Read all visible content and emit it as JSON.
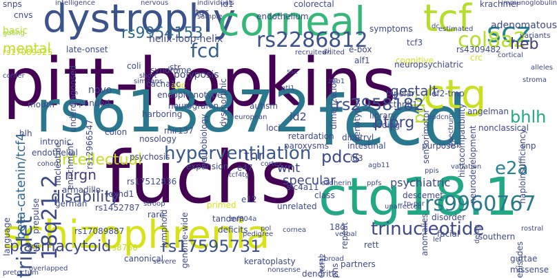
{
  "words": [
    {
      "text": "pitt-hopkins",
      "color": "#440154"
    },
    {
      "text": "fecd",
      "color": "#2a788e"
    },
    {
      "text": "fuchs",
      "color": "#440154"
    },
    {
      "text": "rs613872",
      "color": "#2a788e"
    },
    {
      "text": "ctg18.1",
      "color": "#22a884"
    },
    {
      "text": "schizophrenia",
      "color": "#d8e219"
    },
    {
      "text": "dystrophy",
      "color": "#3b528b"
    },
    {
      "text": "corneal",
      "color": "#35b779"
    },
    {
      "text": "tcf",
      "color": "#b5de2b"
    },
    {
      "text": "ctg",
      "color": "#c8e020"
    },
    {
      "text": "18q21.2",
      "color": "#3e4989"
    },
    {
      "text": "triplet",
      "color": "#3b528b"
    },
    {
      "text": "scz",
      "color": "#26828e"
    },
    {
      "text": "rs9954153",
      "color": "#31688e"
    },
    {
      "text": "fcd",
      "color": "#355f8d"
    },
    {
      "text": "rs2286812",
      "color": "#3b528b"
    },
    {
      "text": "col8a2",
      "color": "#b5de2b"
    },
    {
      "text": "pdc",
      "color": "#b5de2b"
    },
    {
      "text": "heb",
      "color": "#443983"
    },
    {
      "text": "mental",
      "color": "#bddf26"
    },
    {
      "text": "hyperventilation",
      "color": "#38588c"
    },
    {
      "text": "rs2958182",
      "color": "#3b528b"
    },
    {
      "text": "gestalt",
      "color": "#3e4989"
    },
    {
      "text": "bhlh",
      "color": "#22a884"
    },
    {
      "text": "ptprg",
      "color": "#3e4989"
    },
    {
      "text": "intellectual",
      "color": "#c2df23"
    },
    {
      "text": "beta-catenin/tcf4",
      "color": "#31688e"
    },
    {
      "text": "rs9960767",
      "color": "#2a788e"
    },
    {
      "text": "trinucleotide",
      "color": "#3e4989"
    },
    {
      "text": "rs17595731",
      "color": "#3b528b"
    },
    {
      "text": "plasmacytoid",
      "color": "#3e4989"
    },
    {
      "text": "e2a",
      "color": "#26828e"
    },
    {
      "text": "pdcs",
      "color": "#3e4989"
    },
    {
      "text": "wnt",
      "color": "#3e4989"
    },
    {
      "text": "nrgn",
      "color": "#443983"
    },
    {
      "text": "disability",
      "color": "#3e4989"
    },
    {
      "text": "specular",
      "color": "#3e4989"
    },
    {
      "text": "psychiatric",
      "color": "#3e4989"
    },
    {
      "text": "tnr",
      "color": "#3e4989"
    },
    {
      "text": "adenomatous",
      "color": "#3e4989"
    },
    {
      "text": "variants",
      "color": "#3e4989"
    },
    {
      "text": "basic",
      "color": "#bddf26"
    },
    {
      "text": "gating",
      "color": "#a0da39"
    },
    {
      "text": "rs17089925",
      "color": "#c2df23"
    },
    {
      "text": "late-onset",
      "color": "#3e4989"
    },
    {
      "text": "syndrome",
      "color": "#3e4989"
    },
    {
      "text": "helix-loop-helix",
      "color": "#3e4989"
    },
    {
      "text": "endothelium",
      "color": "#3e4989"
    },
    {
      "text": "e-box",
      "color": "#3e4989"
    },
    {
      "text": "alf1",
      "color": "#3e4989"
    },
    {
      "text": "tcf3",
      "color": "#3e4989"
    },
    {
      "text": "cognitive",
      "color": "#d8e219"
    },
    {
      "text": "neuropsychiatric",
      "color": "#3e4989"
    },
    {
      "text": "rs4309482",
      "color": "#3e4989"
    },
    {
      "text": "bipolar",
      "color": "#3e4989"
    },
    {
      "text": "ctnnb1",
      "color": "#3e4989"
    },
    {
      "text": "ef2-tmp",
      "color": "#3e4989"
    },
    {
      "text": "sensorimotor",
      "color": "#3e4989"
    },
    {
      "text": "crc",
      "color": "#d8e219"
    },
    {
      "text": "histocompatibility",
      "color": "#3e4989"
    },
    {
      "text": "angelman",
      "color": "#3e4989"
    },
    {
      "text": "nonclassical",
      "color": "#3e4989"
    },
    {
      "text": "snp",
      "color": "#3e4989"
    },
    {
      "text": "polyposis",
      "color": "#3e4989"
    },
    {
      "text": "apc",
      "color": "#d8e219"
    },
    {
      "text": "endophenotype",
      "color": "#3e4989"
    },
    {
      "text": "neurogranin",
      "color": "#3e4989"
    },
    {
      "text": "cacna1c",
      "color": "#3e4989"
    },
    {
      "text": "coli",
      "color": "#3e4989"
    },
    {
      "text": "str",
      "color": "#3e4989"
    },
    {
      "text": "novo",
      "color": "#3e4989"
    },
    {
      "text": "rs12966547",
      "color": "#3e4989"
    },
    {
      "text": "mir137",
      "color": "#3e4989"
    },
    {
      "text": "nosology",
      "color": "#3e4989"
    },
    {
      "text": "autism",
      "color": "#3e4989"
    },
    {
      "text": "loci",
      "color": "#3e4989"
    },
    {
      "text": "id2",
      "color": "#3e4989"
    },
    {
      "text": "retardation",
      "color": "#3e4989"
    },
    {
      "text": "paroxysms",
      "color": "#3e4989"
    },
    {
      "text": "dibutryl",
      "color": "#3e4989"
    },
    {
      "text": "intestinal",
      "color": "#3e4989"
    },
    {
      "text": "purpose",
      "color": "#3e4989"
    },
    {
      "text": "neurodevelopment",
      "color": "#3e4989"
    },
    {
      "text": "e47",
      "color": "#3e4989"
    },
    {
      "text": "slc4a11",
      "color": "#3e4989"
    },
    {
      "text": "rs17512836",
      "color": "#3e4989"
    },
    {
      "text": "armadillo",
      "color": "#3e4989"
    },
    {
      "text": "loxhd1",
      "color": "#3e4989"
    },
    {
      "text": "rs1452787",
      "color": "#3e4989"
    },
    {
      "text": "rare",
      "color": "#3e4989"
    },
    {
      "text": "primed",
      "color": "#d8e219"
    },
    {
      "text": "tandem",
      "color": "#3e4989"
    },
    {
      "text": "deficits",
      "color": "#3e4989"
    },
    {
      "text": "rs17089887",
      "color": "#3e4989"
    },
    {
      "text": "rs8766",
      "color": "#c2df23"
    },
    {
      "text": "canonical",
      "color": "#3e4989"
    },
    {
      "text": "keratoplasty",
      "color": "#3e4989"
    },
    {
      "text": "dendritic",
      "color": "#3e4989"
    },
    {
      "text": "partners",
      "color": "#3e4989"
    },
    {
      "text": "rett",
      "color": "#3e4989"
    },
    {
      "text": "guttae",
      "color": "#3e4989"
    },
    {
      "text": "missense",
      "color": "#3e4989"
    },
    {
      "text": "haploinsufficiency",
      "color": "#3e4989"
    },
    {
      "text": "disorder",
      "color": "#3e4989"
    },
    {
      "text": "facial",
      "color": "#3e4989"
    },
    {
      "text": "southern",
      "color": "#3e4989"
    },
    {
      "text": "episodes",
      "color": "#3e4989"
    },
    {
      "text": "snps",
      "color": "#3e4989"
    },
    {
      "text": "cnvs",
      "color": "#3e4989"
    },
    {
      "text": "tgc",
      "color": "#3e4989"
    },
    {
      "text": "id1",
      "color": "#3e4989"
    },
    {
      "text": "colorectal",
      "color": "#3e4989"
    },
    {
      "text": "symptoms",
      "color": "#3e4989"
    },
    {
      "text": "krachmer",
      "color": "#3e4989"
    },
    {
      "text": "immunoglobulin",
      "color": "#3e4989"
    },
    {
      "text": "underdiagnosed",
      "color": "#3e4989"
    },
    {
      "text": "genotyped",
      "color": "#3e4989"
    },
    {
      "text": "dimerization",
      "color": "#3e4989"
    },
    {
      "text": "nucleotide",
      "color": "#3e4989"
    },
    {
      "text": "expanded",
      "color": "#3e4989"
    },
    {
      "text": "enrichment",
      "color": "#3e4989"
    },
    {
      "text": "harboring",
      "color": "#3e4989"
    },
    {
      "text": "neurobiology",
      "color": "#3e4989"
    },
    {
      "text": "dysmorphic",
      "color": "#3e4989"
    },
    {
      "text": "mouth",
      "color": "#3e4989"
    },
    {
      "text": "hlh",
      "color": "#3e4989"
    },
    {
      "text": "intronic",
      "color": "#3e4989"
    },
    {
      "text": "colon",
      "color": "#3e4989"
    },
    {
      "text": "psychosis",
      "color": "#3e4989"
    },
    {
      "text": "expansion",
      "color": "#3e4989"
    },
    {
      "text": "lymphoid",
      "color": "#3e4989"
    },
    {
      "text": "genome-wide",
      "color": "#3e4989"
    },
    {
      "text": "e12",
      "color": "#3e4989"
    },
    {
      "text": "unrelated",
      "color": "#3e4989"
    },
    {
      "text": "class",
      "color": "#3e4989"
    },
    {
      "text": "repeat",
      "color": "#3e4989"
    },
    {
      "text": "id3",
      "color": "#3e4989"
    },
    {
      "text": "descemet",
      "color": "#3e4989"
    },
    {
      "text": "anomalies",
      "color": "#3e4989"
    },
    {
      "text": "endothelial",
      "color": "#3e4989"
    },
    {
      "text": "german",
      "color": "#3e4989"
    },
    {
      "text": "library",
      "color": "#3e4989"
    },
    {
      "text": "coding",
      "color": "#3e4989"
    },
    {
      "text": "18q",
      "color": "#3e4989"
    },
    {
      "text": "phs",
      "color": "#3e4989"
    },
    {
      "text": "language",
      "color": "#3e4989"
    },
    {
      "text": "prepulse",
      "color": "#3e4989"
    },
    {
      "text": "pol",
      "color": "#3e4989"
    },
    {
      "text": "cornea",
      "color": "#3e4989"
    },
    {
      "text": "pedigree",
      "color": "#3e4989"
    },
    {
      "text": "verbal",
      "color": "#3e4989"
    },
    {
      "text": "causal",
      "color": "#3e4989"
    },
    {
      "text": "broad",
      "color": "#3e4989"
    },
    {
      "text": "nonsense",
      "color": "#3e4989"
    },
    {
      "text": "severe",
      "color": "#3e4989"
    },
    {
      "text": "overlapped",
      "color": "#3e4989"
    },
    {
      "text": "pretectum",
      "color": "#3e4989"
    },
    {
      "text": "rostral",
      "color": "#3e4989"
    },
    {
      "text": "lef",
      "color": "#3e4989"
    },
    {
      "text": "unaffected",
      "color": "#3e4989"
    },
    {
      "text": "zeb1",
      "color": "#3e4989"
    },
    {
      "text": "gtl1",
      "color": "#3e4989"
    },
    {
      "text": "agb11",
      "color": "#3e4989"
    },
    {
      "text": "cadherin",
      "color": "#3e4989"
    },
    {
      "text": "ppfs",
      "color": "#3e4989"
    },
    {
      "text": "tcf12",
      "color": "#3e4989"
    },
    {
      "text": "tcf4tg",
      "color": "#3e4989"
    },
    {
      "text": "ccp",
      "color": "#3e4989"
    },
    {
      "text": "cohort",
      "color": "#3e4989"
    },
    {
      "text": "european",
      "color": "#3e4989"
    },
    {
      "text": "variation",
      "color": "#3e4989"
    },
    {
      "text": "short",
      "color": "#3e4989"
    },
    {
      "text": "simitans",
      "color": "#3e4989"
    },
    {
      "text": "recruited",
      "color": "#3e4989"
    },
    {
      "text": "united",
      "color": "#3e4989"
    },
    {
      "text": "estimated",
      "color": "#3e4989"
    },
    {
      "text": "cortical",
      "color": "#3e4989"
    },
    {
      "text": "alleles",
      "color": "#3e4989"
    },
    {
      "text": "intelligence",
      "color": "#3e4989"
    },
    {
      "text": "nervous",
      "color": "#3e4989"
    },
    {
      "text": "individuals",
      "color": "#3e4989"
    },
    {
      "text": "sample",
      "color": "#3e4989"
    },
    {
      "text": "dc",
      "color": "#3e4989"
    },
    {
      "text": "ppis",
      "color": "#3e4989"
    },
    {
      "text": "risk",
      "color": "#3e4989"
    },
    {
      "text": "delay",
      "color": "#3e4989"
    },
    {
      "text": "stroop",
      "color": "#3e4989"
    },
    {
      "text": "tp-pcr",
      "color": "#3e4989"
    },
    {
      "text": "znf804a",
      "color": "#3e4989"
    },
    {
      "text": "spectrum",
      "color": "#3e4989"
    },
    {
      "text": "bpdcn",
      "color": "#3e4989"
    },
    {
      "text": "ssc",
      "color": "#3e4989"
    },
    {
      "text": "zij",
      "color": "#3e4989"
    },
    {
      "text": "confer",
      "color": "#3e4989"
    },
    {
      "text": "stroma",
      "color": "#3e4989"
    },
    {
      "text": "cortex",
      "color": "#3e4989"
    }
  ]
}
